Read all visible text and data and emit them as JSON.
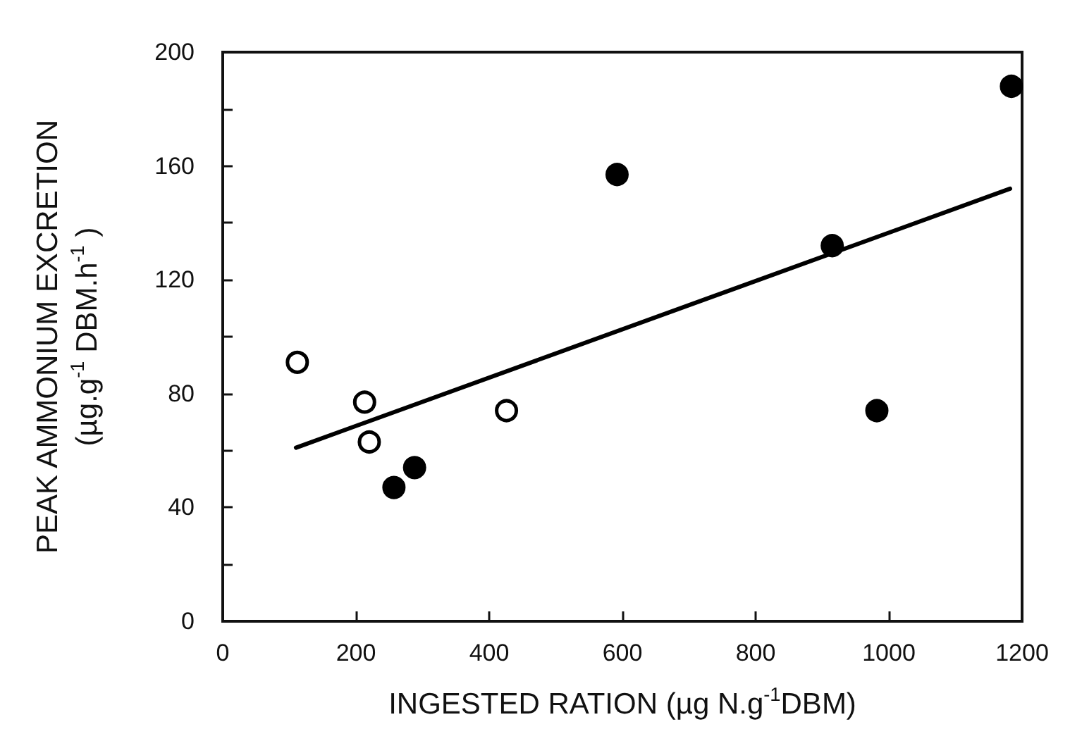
{
  "chart_data": {
    "type": "scatter",
    "xlabel": "INGESTED RATION (µg N.g$^{-1}$DBM)",
    "ylabel": "PEAK AMMONIUM EXCRETION\n(µg.g$^{-1}$ DBM.h$^{-1}$ )",
    "series": [
      {
        "color": "#ffffff",
        "x": [
          112,
          213,
          220,
          426
        ],
        "values": [
          91,
          77,
          63,
          74
        ]
      },
      {
        "color": "#000000",
        "x": [
          257,
          288,
          592,
          915,
          982,
          1184
        ],
        "values": [
          47,
          54,
          157,
          132,
          74,
          188
        ]
      },
      {
        "type": "line",
        "color": "#000000",
        "x": [
          110,
          1182
        ],
        "values": [
          61,
          152
        ],
        "marker": "none"
      }
    ],
    "marker": "circle",
    "line_style": "solid",
    "grid": false,
    "xlim": [
      0,
      1200
    ],
    "xticks": [
      0,
      200,
      400,
      600,
      800,
      1000,
      1200
    ],
    "ylim": [
      0,
      200
    ],
    "yticks": [
      0,
      {
        "value": 20,
        "label": null
      },
      40,
      {
        "value": 60,
        "label": null
      },
      80,
      {
        "value": 100,
        "label": null
      },
      120,
      {
        "value": 140,
        "label": null
      },
      160,
      {
        "value": 180,
        "label": null
      },
      200
    ]
  }
}
